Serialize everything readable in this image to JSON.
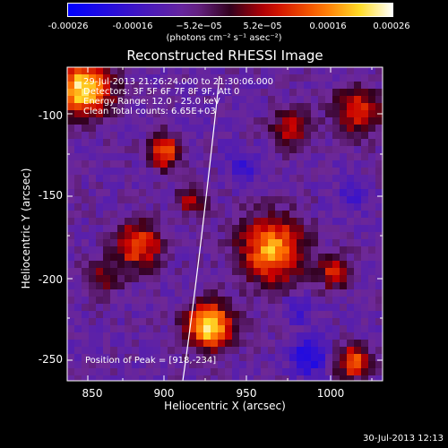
{
  "colorbar": {
    "ticks": [
      "-0.00026",
      "-0.00016",
      "−5.2e−05",
      "5.2e−05",
      "0.00016",
      "0.00026"
    ],
    "unit": "(photons cm⁻² s⁻¹ asec⁻²)"
  },
  "title": "Reconstructed RHESSI Image",
  "info": {
    "time_range": "29-Jul-2013 21:26:24.000 to 21:30:06.000",
    "detectors": "Detectors: 3F 5F 6F 7F 8F 9F, Att 0",
    "energy": "Energy Range: 12.0 - 25.0 keV",
    "clean": "Clean     Total counts: 6.65E+03",
    "peak": "Position of Peak = [918,-234]"
  },
  "axes": {
    "xlabel": "Heliocentric X (arcsec)",
    "ylabel": "Heliocentric Y (arcsec)",
    "xticks": [
      "850",
      "900",
      "950",
      "1000"
    ],
    "yticks": [
      "-100",
      "-150",
      "-200",
      "-250"
    ]
  },
  "footer": "30-Jul-2013 12:13",
  "colors": {
    "text": "#ffffff",
    "background": "#000000",
    "limb": "#ffffff"
  }
}
